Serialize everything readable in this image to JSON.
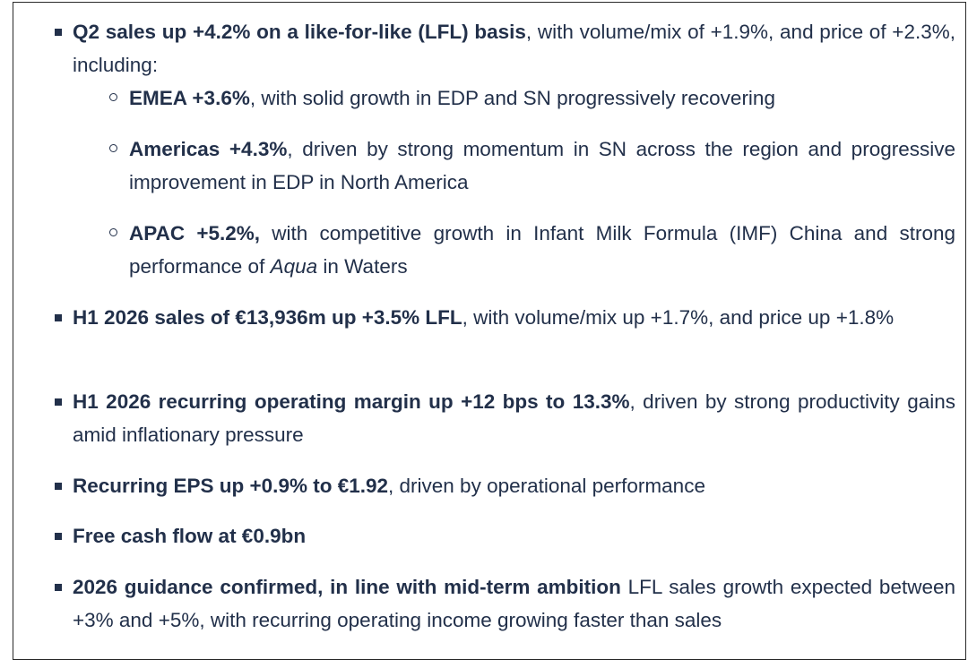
{
  "bullets": [
    {
      "bold": "Q2 sales up +4.2% on a like-for-like (LFL) basis",
      "text": ", with volume/mix of +1.9%, and price of +2.3%, including:"
    },
    {
      "bold": "H1 2026 sales of €13,936m up +3.5% LFL",
      "text": ", with volume/mix up +1.7%, and price up +1.8%"
    },
    {
      "bold": "H1 2026 recurring operating margin up +12 bps to 13.3%",
      "text": ", driven by strong productivity gains amid inflationary pressure"
    },
    {
      "bold": "Recurring EPS up +0.9% to €1.92",
      "text": ", driven by operational performance"
    },
    {
      "bold": "Free cash flow at €0.9bn",
      "text": ""
    },
    {
      "bold": "2026 guidance confirmed, in line with mid-term ambition",
      "text": " LFL sales growth expected between +3% and +5%, with recurring operating income growing faster than sales"
    }
  ],
  "sub_bullets": [
    {
      "bold": "EMEA +3.6%",
      "text": ", with solid growth in EDP and SN progressively recovering"
    },
    {
      "bold": "Americas +4.3%",
      "text": ", driven by strong momentum in SN across the region and progressive improvement in EDP in North America"
    },
    {
      "bold": "APAC +5.2%,",
      "text": " with competitive growth in Infant Milk Formula (IMF) China and strong performance of ",
      "italic": "Aqua",
      "text_after": " in Waters"
    }
  ]
}
